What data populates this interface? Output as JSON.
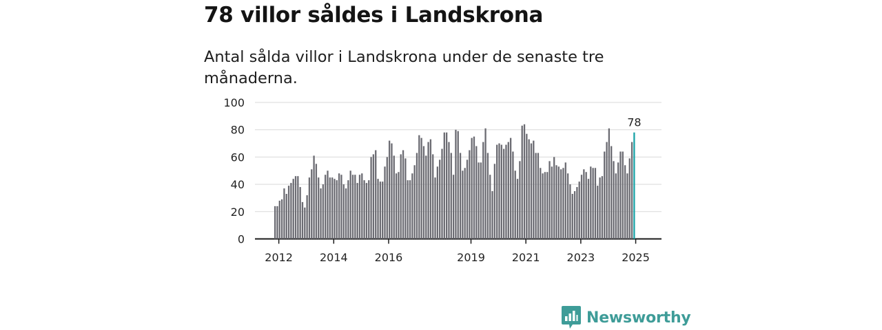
{
  "title": "78 villor såldes i Landskrona",
  "subtitle": "Antal sålda villor i Landskrona under de senaste tre månaderna.",
  "brand": {
    "name": "Newsworthy",
    "icon": "bar-chart-logo-icon",
    "color": "#3e9c98"
  },
  "colors": {
    "bar": "#6b6b72",
    "highlight": "#18a2a6",
    "grid": "#d9d9d9",
    "axis": "#1a1a1a"
  },
  "chart_data": {
    "type": "bar",
    "title": "Antal sålda villor i Landskrona under de senaste tre månaderna.",
    "xlabel": "",
    "ylabel": "",
    "ylim": [
      0,
      100
    ],
    "yticks": [
      0,
      20,
      40,
      60,
      80,
      100
    ],
    "xticks": [
      {
        "label": "2012",
        "index": 2
      },
      {
        "label": "2014",
        "index": 26
      },
      {
        "label": "2016",
        "index": 50
      },
      {
        "label": "2019",
        "index": 86
      },
      {
        "label": "2021",
        "index": 110
      },
      {
        "label": "2023",
        "index": 134
      },
      {
        "label": "2025",
        "index": 158
      }
    ],
    "grid": true,
    "highlight_label": "78",
    "values": [
      24,
      24,
      28,
      29,
      37,
      33,
      39,
      41,
      44,
      46,
      46,
      38,
      27,
      23,
      32,
      45,
      51,
      61,
      55,
      45,
      37,
      40,
      47,
      50,
      45,
      45,
      44,
      43,
      48,
      47,
      40,
      37,
      43,
      50,
      47,
      47,
      41,
      47,
      48,
      43,
      41,
      43,
      60,
      62,
      65,
      44,
      42,
      42,
      53,
      60,
      72,
      70,
      61,
      48,
      49,
      62,
      65,
      59,
      43,
      43,
      48,
      54,
      63,
      76,
      74,
      68,
      61,
      71,
      73,
      62,
      45,
      53,
      58,
      66,
      78,
      78,
      71,
      63,
      47,
      80,
      79,
      63,
      50,
      52,
      58,
      65,
      74,
      75,
      68,
      56,
      56,
      71,
      81,
      63,
      47,
      35,
      55,
      69,
      70,
      69,
      66,
      69,
      71,
      74,
      64,
      50,
      44,
      57,
      83,
      84,
      77,
      73,
      70,
      72,
      63,
      63,
      52,
      48,
      49,
      49,
      57,
      53,
      60,
      54,
      53,
      51,
      52,
      56,
      48,
      40,
      33,
      35,
      38,
      42,
      47,
      51,
      49,
      44,
      53,
      52,
      52,
      39,
      45,
      46,
      64,
      71,
      81,
      68,
      57,
      48,
      56,
      64,
      64,
      54,
      48,
      59,
      71,
      78
    ],
    "last_value": 78
  }
}
